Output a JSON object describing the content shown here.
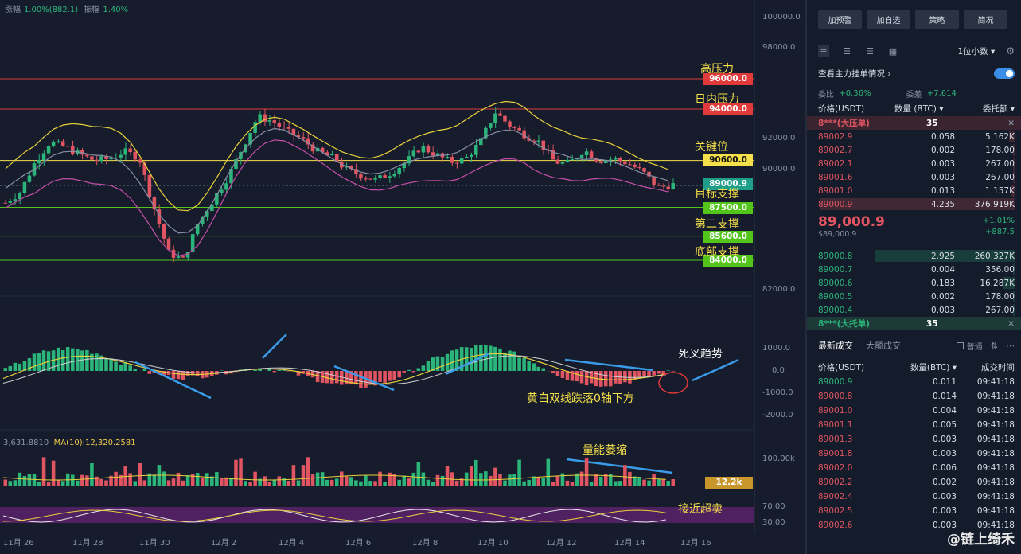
{
  "header": {
    "change_label": "涨幅",
    "change_value": "1.00%(882.1)",
    "amplitude_label": "振幅",
    "amplitude_value": "1.40%"
  },
  "price_axis": [
    "100000.0",
    "98000.0",
    "92000.0",
    "90000.0",
    "82000.0"
  ],
  "levels": [
    {
      "name": "高压力",
      "price": "96000.0",
      "color": "#e03a3a"
    },
    {
      "name": "日内压力",
      "price": "94000.0",
      "color": "#e03a3a"
    },
    {
      "name": "关键位",
      "price": "90600.0",
      "color": "#f5e04a"
    },
    {
      "name": "目标支撑",
      "price": "87500.0",
      "color": "#52c41a"
    },
    {
      "name": "第二支撑",
      "price": "85600.0",
      "color": "#52c41a"
    },
    {
      "name": "底部支撑",
      "price": "84000.0",
      "color": "#52c41a"
    }
  ],
  "current_price_tag": "89000.9",
  "macd_axis": [
    "1000.0",
    "0.0",
    "-1000.0",
    "-2000.0"
  ],
  "annotations": {
    "dead_cross": "死叉趋势",
    "zero_axis": "黄白双线跌落0轴下方",
    "volume_shrink": "量能萎缩",
    "oversold": "接近超卖"
  },
  "volume": {
    "ma_label_prefix": "3,631.8810",
    "ma_label": "MA(10):12,320.2581",
    "axis_top": "100.00k",
    "current_tag": "12.2k"
  },
  "rsi_axis": [
    "70.00",
    "30.00"
  ],
  "dates": [
    "11月 26",
    "11月 28",
    "11月 30",
    "12月 2",
    "12月 4",
    "12月 6",
    "12月 8",
    "12月 10",
    "12月 12",
    "12月 14",
    "12月 16"
  ],
  "panel": {
    "buttons": [
      "加预警",
      "加自选",
      "策略",
      "简况"
    ],
    "precision": "1位小数",
    "depth_label": "查看主力挂单情况",
    "bid_ask_ratio": {
      "label1": "委比",
      "value1": "+0.36%",
      "label2": "委差",
      "value2": "+7.614"
    },
    "headers": [
      "价格(USDT)",
      "数量 (BTC)",
      "委托额"
    ],
    "big_ask": {
      "name": "8***(大压单)",
      "qty": "35"
    },
    "asks": [
      {
        "price": "89002.9",
        "qty": "0.058",
        "amt": "5.162K",
        "bar": 0.03
      },
      {
        "price": "89002.7",
        "qty": "0.002",
        "amt": "178.00",
        "bar": 0.01
      },
      {
        "price": "89002.1",
        "qty": "0.003",
        "amt": "267.00",
        "bar": 0.01
      },
      {
        "price": "89001.6",
        "qty": "0.003",
        "amt": "267.00",
        "bar": 0.01
      },
      {
        "price": "89001.0",
        "qty": "0.013",
        "amt": "1.157K",
        "bar": 0.02
      },
      {
        "price": "89000.9",
        "qty": "4.235",
        "amt": "376.919K",
        "bar": 0.98
      }
    ],
    "mid": {
      "price": "89,000.9",
      "usd": "$89,000.9",
      "pct": "+1.01%",
      "chg": "+887.5"
    },
    "bids": [
      {
        "price": "89000.8",
        "qty": "2.925",
        "amt": "260.327K",
        "bar": 0.7
      },
      {
        "price": "89000.7",
        "qty": "0.004",
        "amt": "356.00",
        "bar": 0.01
      },
      {
        "price": "89000.6",
        "qty": "0.183",
        "amt": "16.287K",
        "bar": 0.06
      },
      {
        "price": "89000.5",
        "qty": "0.002",
        "amt": "178.00",
        "bar": 0.01
      },
      {
        "price": "89000.4",
        "qty": "0.003",
        "amt": "267.00",
        "bar": 0.01
      }
    ],
    "big_bid": {
      "name": "8***(大托单)",
      "qty": "35"
    },
    "tabs": {
      "latest": "最新成交",
      "large": "大额成交",
      "normal": "普通"
    },
    "trade_headers": [
      "价格(USDT)",
      "数量(BTC)",
      "成交时间"
    ],
    "trades": [
      {
        "price": "89000.9",
        "qty": "0.011",
        "time": "09:41:18",
        "side": "green"
      },
      {
        "price": "89000.8",
        "qty": "0.014",
        "time": "09:41:18",
        "side": "red"
      },
      {
        "price": "89001.0",
        "qty": "0.004",
        "time": "09:41:18",
        "side": "red"
      },
      {
        "price": "89001.1",
        "qty": "0.005",
        "time": "09:41:18",
        "side": "red"
      },
      {
        "price": "89001.3",
        "qty": "0.003",
        "time": "09:41:18",
        "side": "red"
      },
      {
        "price": "89001.8",
        "qty": "0.003",
        "time": "09:41:18",
        "side": "red"
      },
      {
        "price": "89002.0",
        "qty": "0.006",
        "time": "09:41:18",
        "side": "red"
      },
      {
        "price": "89002.2",
        "qty": "0.002",
        "time": "09:41:18",
        "side": "red"
      },
      {
        "price": "89002.4",
        "qty": "0.003",
        "time": "09:41:18",
        "side": "red"
      },
      {
        "price": "89002.5",
        "qty": "0.003",
        "time": "09:41:18",
        "side": "red"
      },
      {
        "price": "89002.6",
        "qty": "0.003",
        "time": "09:41:18",
        "side": "red"
      }
    ],
    "watermark": "@链上绮禾"
  }
}
